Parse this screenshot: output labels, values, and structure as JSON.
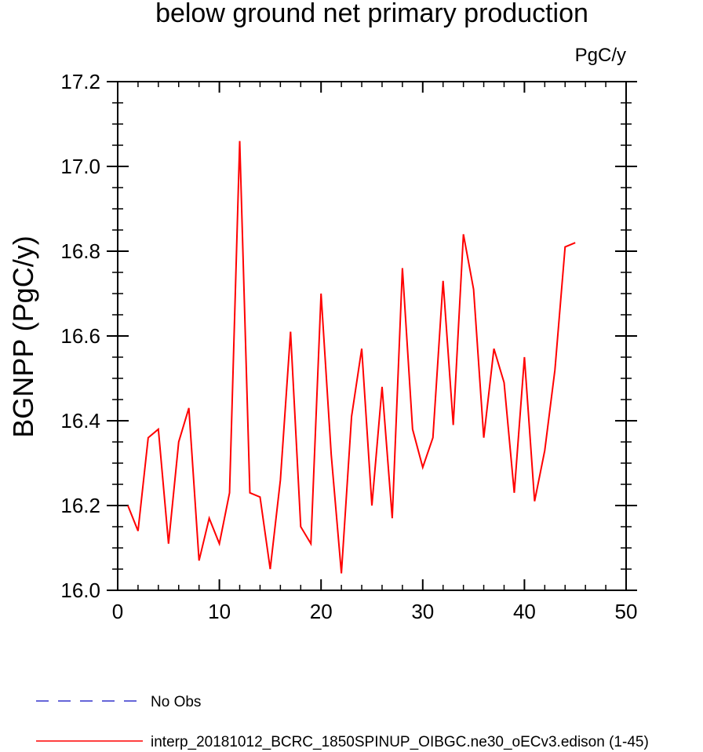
{
  "chart_data": {
    "type": "line",
    "title": "below ground net primary production",
    "units": "PgC/y",
    "ylabel": "BGNPP  (PgC/y)",
    "xlabel": "",
    "xlim": [
      0,
      50
    ],
    "ylim": [
      16.0,
      17.2
    ],
    "x_ticks": [
      0,
      10,
      20,
      30,
      40,
      50
    ],
    "x_tick_labels": [
      "0",
      "10",
      "20",
      "30",
      "40",
      "50"
    ],
    "y_ticks": [
      16.0,
      16.2,
      16.4,
      16.6,
      16.8,
      17.0,
      17.2
    ],
    "y_tick_labels": [
      "16.0",
      "16.2",
      "16.4",
      "16.6",
      "16.8",
      "17.0",
      "17.2"
    ],
    "grid": false,
    "legend_placement": "bottom-left, below plot",
    "series": [
      {
        "name": "No Obs",
        "color": "#3333cc",
        "dash": "dashed",
        "x": [],
        "values": []
      },
      {
        "name": "interp_20181012_BCRC_1850SPINUP_OIBGC.ne30_oECv3.edison (1-45)",
        "color": "#ff0000",
        "dash": "solid",
        "x": [
          1,
          2,
          3,
          4,
          5,
          6,
          7,
          8,
          9,
          10,
          11,
          12,
          13,
          14,
          15,
          16,
          17,
          18,
          19,
          20,
          21,
          22,
          23,
          24,
          25,
          26,
          27,
          28,
          29,
          30,
          31,
          32,
          33,
          34,
          35,
          36,
          37,
          38,
          39,
          40,
          41,
          42,
          43,
          44,
          45
        ],
        "values": [
          16.2,
          16.14,
          16.36,
          16.38,
          16.11,
          16.35,
          16.43,
          16.07,
          16.17,
          16.11,
          16.23,
          17.06,
          16.23,
          16.22,
          16.05,
          16.26,
          16.61,
          16.15,
          16.11,
          16.7,
          16.32,
          16.04,
          16.41,
          16.57,
          16.2,
          16.48,
          16.17,
          16.76,
          16.38,
          16.29,
          16.36,
          16.73,
          16.39,
          16.84,
          16.71,
          16.36,
          16.57,
          16.49,
          16.23,
          16.55,
          16.21,
          16.33,
          16.52,
          16.81,
          16.82
        ]
      }
    ]
  }
}
